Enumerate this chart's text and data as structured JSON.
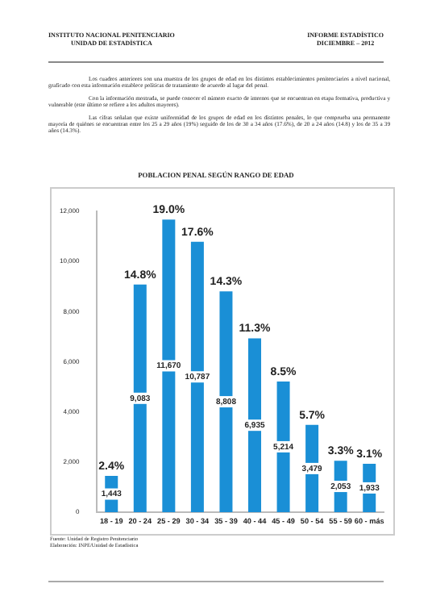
{
  "chart_data": {
    "type": "bar",
    "title": "POBLACION PENAL SEGÚN RANGO DE EDAD",
    "categories": [
      "18 - 19",
      "20 - 24",
      "25 - 29",
      "30 - 34",
      "35 - 39",
      "40 - 44",
      "45 - 49",
      "50 - 54",
      "55 - 59",
      "60 - más"
    ],
    "values": [
      1443,
      9083,
      11670,
      10787,
      8808,
      6935,
      5214,
      3479,
      2053,
      1933
    ],
    "value_labels": [
      "1,443",
      "9,083",
      "11,670",
      "10,787",
      "8,808",
      "6,935",
      "5,214",
      "3,479",
      "2,053",
      "1,933"
    ],
    "color": "#1a8fd6",
    "ylim": [
      0,
      12000
    ],
    "yticks": [
      {
        "value": 0,
        "label": "0"
      },
      {
        "value": 2000,
        "label": "2,000"
      },
      {
        "value": 4000,
        "label": "4,000"
      },
      {
        "value": 6000,
        "label": "6,000"
      },
      {
        "value": 8000,
        "label": "8,000"
      },
      {
        "value": 10000,
        "label": "10,000"
      },
      {
        "value": 12000,
        "label": "12,000"
      }
    ],
    "grid": false,
    "legend": false,
    "annotations": [
      "INSTITUTO NACIONAL PENITENCIARIO",
      "UNIDAD DE ESTADÍSTICA",
      "INFORME ESTADÍSTICO",
      "DICIEMBRE – 2012",
      "Los cuadros anteriores son una muestra de los grupos de edad en los distintos establecimientos penitenciarios a nivel nacional, graficado con esta información establece políticas de tratamiento de acuerdo al lugar del penal.",
      "Con la información mostrada, se puede conocer el número exacto de internos que se encuentran en etapa formativa, productiva y vulnerable (este último se refiere a los adultos mayores).",
      "Las cifras señalan que existe uniformidad de los grupos de edad en los distintos penales, lo que comprueba una permanente mayoría de quiénes se encuentran entre los 25 a 29 años (19%) seguido de los de 30 a 34 años (17.6%), de 20 a 24 años (14.8) y los de 35 a 39 años (14.3%).",
      {
        "text": "2.4%",
        "x": "18 - 19",
        "y": 1443
      },
      {
        "text": "14.8%",
        "x": "20 - 24",
        "y": 9083
      },
      {
        "text": "19.0%",
        "x": "25 - 29",
        "y": 11670
      },
      {
        "text": "17.6%",
        "x": "30 - 34",
        "y": 10787
      },
      {
        "text": "14.3%",
        "x": "35 - 39",
        "y": 8808
      },
      {
        "text": "11.3%",
        "x": "40 - 44",
        "y": 6935
      },
      {
        "text": "8.5%",
        "x": "45 - 49",
        "y": 5214
      },
      {
        "text": "5.7%",
        "x": "50 - 54",
        "y": 3479
      },
      {
        "text": "3.3%",
        "x": "55 - 59",
        "y": 2053
      },
      {
        "text": "3.1%",
        "x": "60 - más",
        "y": 1933
      },
      "Fuente: Unidad de Registro Penitenciario",
      "Elaboración: INPE/Unidad de Estadística"
    ]
  }
}
